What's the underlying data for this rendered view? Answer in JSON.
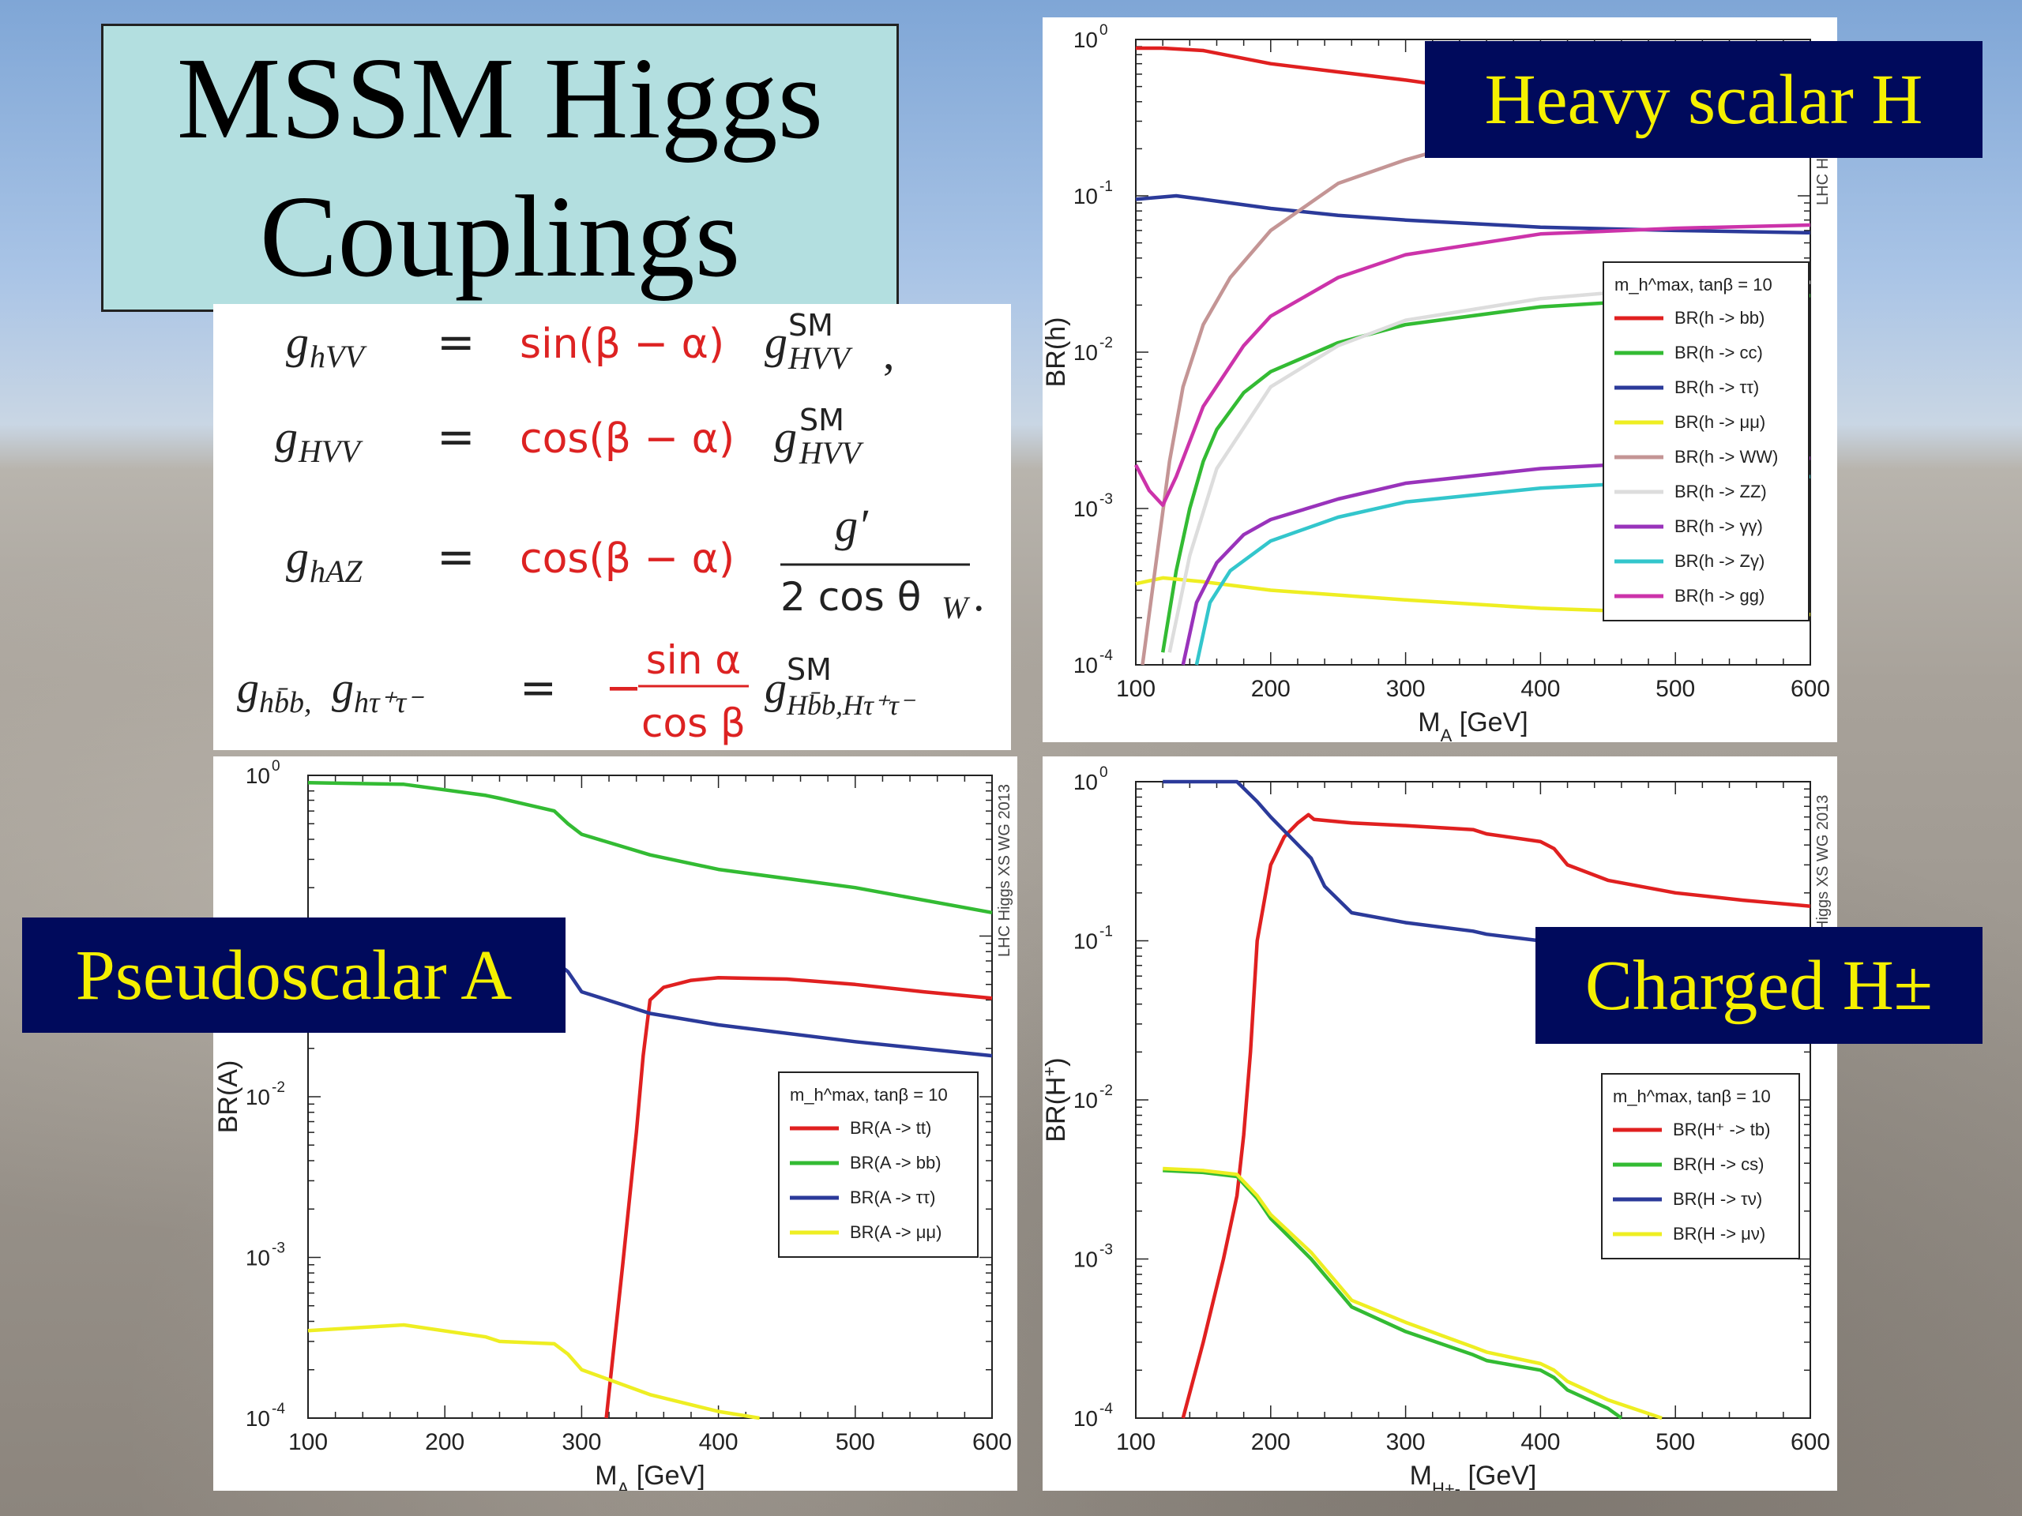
{
  "slide": {
    "title_line1": "MSSM Higgs",
    "title_line2": "Couplings",
    "labels": {
      "heavy": "Heavy scalar H",
      "pseudo": "Pseudoscalar A",
      "charged": "Charged H±"
    }
  },
  "formulas": [
    {
      "lhs": "g",
      "lhs_sub": "hVV",
      "coef": "sin(β − α)",
      "g_sym": "g",
      "sup": "SM",
      "sub": "HVV",
      "tail": ","
    },
    {
      "lhs": "g",
      "lhs_sub": "HVV",
      "coef": "cos(β − α)",
      "g_sym": "g",
      "sup": "SM",
      "sub": "HVV",
      "tail": ""
    },
    {
      "lhs": "g",
      "lhs_sub": "hAZ",
      "coef": "cos(β − α)",
      "frac_num": "g′",
      "frac_den": "2 cos θ",
      "frac_den_sub": "W",
      "tail": "."
    },
    {
      "lhs": "g",
      "lhs_sub": "hb̄b, ",
      "lhs2": "g",
      "lhs2_sub": "hτ⁺τ⁻",
      "sign": "−",
      "frac_num": "sin α",
      "frac_den": "cos β",
      "g_sym": "g",
      "sup": "SM",
      "sub": "Hb̄b,Hτ⁺τ⁻"
    }
  ],
  "equals": "=",
  "chart_data": [
    {
      "type": "line",
      "ylabel": "BR(h)",
      "xlabel": "M",
      "xlabel_sub": "A",
      "xlabel_unit": " [GeV]",
      "xlim": [
        100,
        600
      ],
      "ylim": [
        0.0001,
        1
      ],
      "yscale": "log",
      "xticks": [
        "100",
        "200",
        "300",
        "400",
        "500",
        "600"
      ],
      "yticks": [
        {
          "base": "10",
          "exp": "-4"
        },
        {
          "base": "10",
          "exp": "-3"
        },
        {
          "base": "10",
          "exp": "-2"
        },
        {
          "base": "10",
          "exp": "-1"
        },
        {
          "base": "10",
          "exp": "0"
        }
      ],
      "watermark": "LHC H",
      "legend_header": "m_h^max, tanβ = 10",
      "legend_position": "right",
      "series": [
        {
          "name": "BR(h -> bb)",
          "color": "#e02020",
          "x": [
            100,
            120,
            150,
            200,
            250,
            300,
            320
          ],
          "y": [
            0.88,
            0.88,
            0.85,
            0.7,
            0.62,
            0.55,
            0.52
          ]
        },
        {
          "name": "BR(h -> cc)",
          "color": "#33bb33",
          "x": [
            120,
            130,
            140,
            150,
            160,
            180,
            200,
            250,
            300,
            400,
            500,
            600
          ],
          "y": [
            0.00012,
            0.0004,
            0.001,
            0.002,
            0.0032,
            0.0055,
            0.0075,
            0.0115,
            0.015,
            0.0195,
            0.022,
            0.023
          ]
        },
        {
          "name": "BR(h -> ττ)",
          "color": "#2b3a9a",
          "x": [
            100,
            130,
            150,
            200,
            250,
            300,
            400,
            500,
            600
          ],
          "y": [
            0.095,
            0.1,
            0.095,
            0.083,
            0.075,
            0.07,
            0.063,
            0.06,
            0.058
          ]
        },
        {
          "name": "BR(h -> μμ)",
          "color": "#eeee22",
          "x": [
            100,
            120,
            150,
            200,
            300,
            400,
            500,
            600
          ],
          "y": [
            0.00033,
            0.00036,
            0.00034,
            0.0003,
            0.00026,
            0.00023,
            0.000215,
            0.00021
          ]
        },
        {
          "name": "BR(h -> WW)",
          "color": "#c49595",
          "x": [
            105,
            115,
            125,
            135,
            150,
            170,
            200,
            250,
            300,
            320
          ],
          "y": [
            0.0001,
            0.00045,
            0.002,
            0.006,
            0.015,
            0.03,
            0.06,
            0.12,
            0.17,
            0.19
          ]
        },
        {
          "name": "BR(h -> ZZ)",
          "color": "#dddddd",
          "x": [
            125,
            140,
            160,
            200,
            250,
            300,
            400,
            500,
            600
          ],
          "y": [
            0.00012,
            0.0005,
            0.0018,
            0.006,
            0.011,
            0.016,
            0.022,
            0.026,
            0.028
          ]
        },
        {
          "name": "BR(h -> γγ)",
          "color": "#9933bb",
          "x": [
            135,
            145,
            160,
            180,
            200,
            250,
            300,
            400,
            500,
            600
          ],
          "y": [
            0.0001,
            0.00025,
            0.00045,
            0.00068,
            0.00085,
            0.00115,
            0.00145,
            0.0018,
            0.002,
            0.0021
          ]
        },
        {
          "name": "BR(h -> Zγ)",
          "color": "#33c6cc",
          "x": [
            145,
            155,
            170,
            200,
            250,
            300,
            400,
            500,
            600
          ],
          "y": [
            0.0001,
            0.00025,
            0.0004,
            0.00062,
            0.00088,
            0.0011,
            0.00135,
            0.0015,
            0.0016
          ]
        },
        {
          "name": "BR(h -> gg)",
          "color": "#cc33aa",
          "x": [
            100,
            110,
            120,
            130,
            150,
            180,
            200,
            250,
            300,
            400,
            500,
            600
          ],
          "y": [
            0.0019,
            0.0013,
            0.00105,
            0.0016,
            0.0045,
            0.011,
            0.017,
            0.03,
            0.042,
            0.057,
            0.062,
            0.065
          ]
        }
      ]
    },
    {
      "type": "line",
      "ylabel": "BR(A)",
      "xlabel": "M",
      "xlabel_sub": "A",
      "xlabel_unit": " [GeV]",
      "xlim": [
        100,
        600
      ],
      "ylim": [
        0.0001,
        1
      ],
      "yscale": "log",
      "xticks": [
        "100",
        "200",
        "300",
        "400",
        "500",
        "600"
      ],
      "yticks": [
        {
          "base": "10",
          "exp": "-4"
        },
        {
          "base": "10",
          "exp": "-3"
        },
        {
          "base": "10",
          "exp": "-2"
        },
        {
          "base": "10",
          "exp": "-1"
        },
        {
          "base": "10",
          "exp": "0"
        }
      ],
      "watermark": "LHC Higgs XS WG 2013",
      "legend_header": "m_h^max, tanβ = 10",
      "legend_position": "right",
      "series": [
        {
          "name": "BR(A -> tt)",
          "color": "#e02020",
          "x": [
            318,
            330,
            340,
            345,
            350,
            360,
            380,
            400,
            450,
            500,
            550,
            600
          ],
          "y": [
            0.0001,
            0.0009,
            0.006,
            0.018,
            0.04,
            0.048,
            0.053,
            0.055,
            0.054,
            0.05,
            0.045,
            0.041
          ]
        },
        {
          "name": "BR(A -> bb)",
          "color": "#33bb33",
          "x": [
            100,
            170,
            230,
            240,
            280,
            290,
            300,
            350,
            400,
            500,
            600
          ],
          "y": [
            0.9,
            0.88,
            0.75,
            0.72,
            0.6,
            0.5,
            0.43,
            0.32,
            0.26,
            0.2,
            0.14
          ]
        },
        {
          "name": "BR(A -> ττ)",
          "color": "#2b3a9a",
          "x": [
            100,
            170,
            230,
            240,
            280,
            290,
            300,
            350,
            400,
            500,
            600
          ],
          "y": [
            0.088,
            0.088,
            0.076,
            0.074,
            0.07,
            0.06,
            0.045,
            0.033,
            0.028,
            0.022,
            0.018
          ]
        },
        {
          "name": "BR(A -> μμ)",
          "color": "#eeee22",
          "x": [
            100,
            170,
            230,
            240,
            280,
            290,
            300,
            350,
            400,
            430
          ],
          "y": [
            0.00035,
            0.00038,
            0.00032,
            0.0003,
            0.00029,
            0.00025,
            0.0002,
            0.00014,
            0.00011,
            0.0001
          ]
        }
      ]
    },
    {
      "type": "line",
      "ylabel": "BR(H",
      "ylabel_sup": "+",
      "ylabel_tail": ")",
      "xlabel": "M",
      "xlabel_sub": "H+-",
      "xlabel_unit": " [GeV]",
      "xlim": [
        100,
        600
      ],
      "ylim": [
        0.0001,
        1
      ],
      "yscale": "log",
      "xticks": [
        "100",
        "200",
        "300",
        "400",
        "500",
        "600"
      ],
      "yticks": [
        {
          "base": "10",
          "exp": "-4"
        },
        {
          "base": "10",
          "exp": "-3"
        },
        {
          "base": "10",
          "exp": "-2"
        },
        {
          "base": "10",
          "exp": "-1"
        },
        {
          "base": "10",
          "exp": "0"
        }
      ],
      "watermark": "C Higgs XS WG 2013",
      "legend_header": "m_h^max, tanβ = 10",
      "legend_position": "right",
      "series": [
        {
          "name": "BR(H⁺ -> tb)",
          "color": "#e02020",
          "x": [
            135,
            150,
            165,
            175,
            180,
            185,
            190,
            200,
            210,
            220,
            228,
            232,
            260,
            300,
            350,
            360,
            400,
            410,
            420,
            450,
            500,
            550,
            600
          ],
          "y": [
            0.0001,
            0.0003,
            0.001,
            0.0025,
            0.006,
            0.02,
            0.1,
            0.3,
            0.45,
            0.55,
            0.62,
            0.58,
            0.55,
            0.53,
            0.5,
            0.47,
            0.42,
            0.38,
            0.3,
            0.24,
            0.2,
            0.18,
            0.165
          ]
        },
        {
          "name": "BR(H -> cs)",
          "color": "#33bb33",
          "x": [
            120,
            150,
            175,
            190,
            200,
            230,
            260,
            300,
            350,
            360,
            400,
            410,
            420,
            450,
            460
          ],
          "y": [
            0.0036,
            0.0035,
            0.0033,
            0.0024,
            0.0018,
            0.001,
            0.0005,
            0.00035,
            0.00025,
            0.00023,
            0.0002,
            0.00018,
            0.00015,
            0.000115,
            0.0001
          ]
        },
        {
          "name": "BR(H -> τν)",
          "color": "#2b3a9a",
          "x": [
            120,
            150,
            175,
            190,
            200,
            230,
            240,
            260,
            300,
            350,
            360,
            400,
            410,
            420,
            450,
            470
          ],
          "y": [
            1,
            1,
            1,
            0.75,
            0.6,
            0.33,
            0.22,
            0.15,
            0.13,
            0.115,
            0.11,
            0.1,
            0.095,
            0.085,
            0.075,
            0.07
          ]
        },
        {
          "name": "BR(H -> μν)",
          "color": "#eeee22",
          "x": [
            120,
            150,
            175,
            190,
            200,
            230,
            260,
            300,
            350,
            360,
            400,
            410,
            420,
            450,
            490
          ],
          "y": [
            0.0037,
            0.0036,
            0.0034,
            0.0025,
            0.0019,
            0.0011,
            0.00055,
            0.0004,
            0.00028,
            0.00026,
            0.00022,
            0.0002,
            0.00017,
            0.00013,
            0.0001
          ]
        }
      ]
    }
  ]
}
